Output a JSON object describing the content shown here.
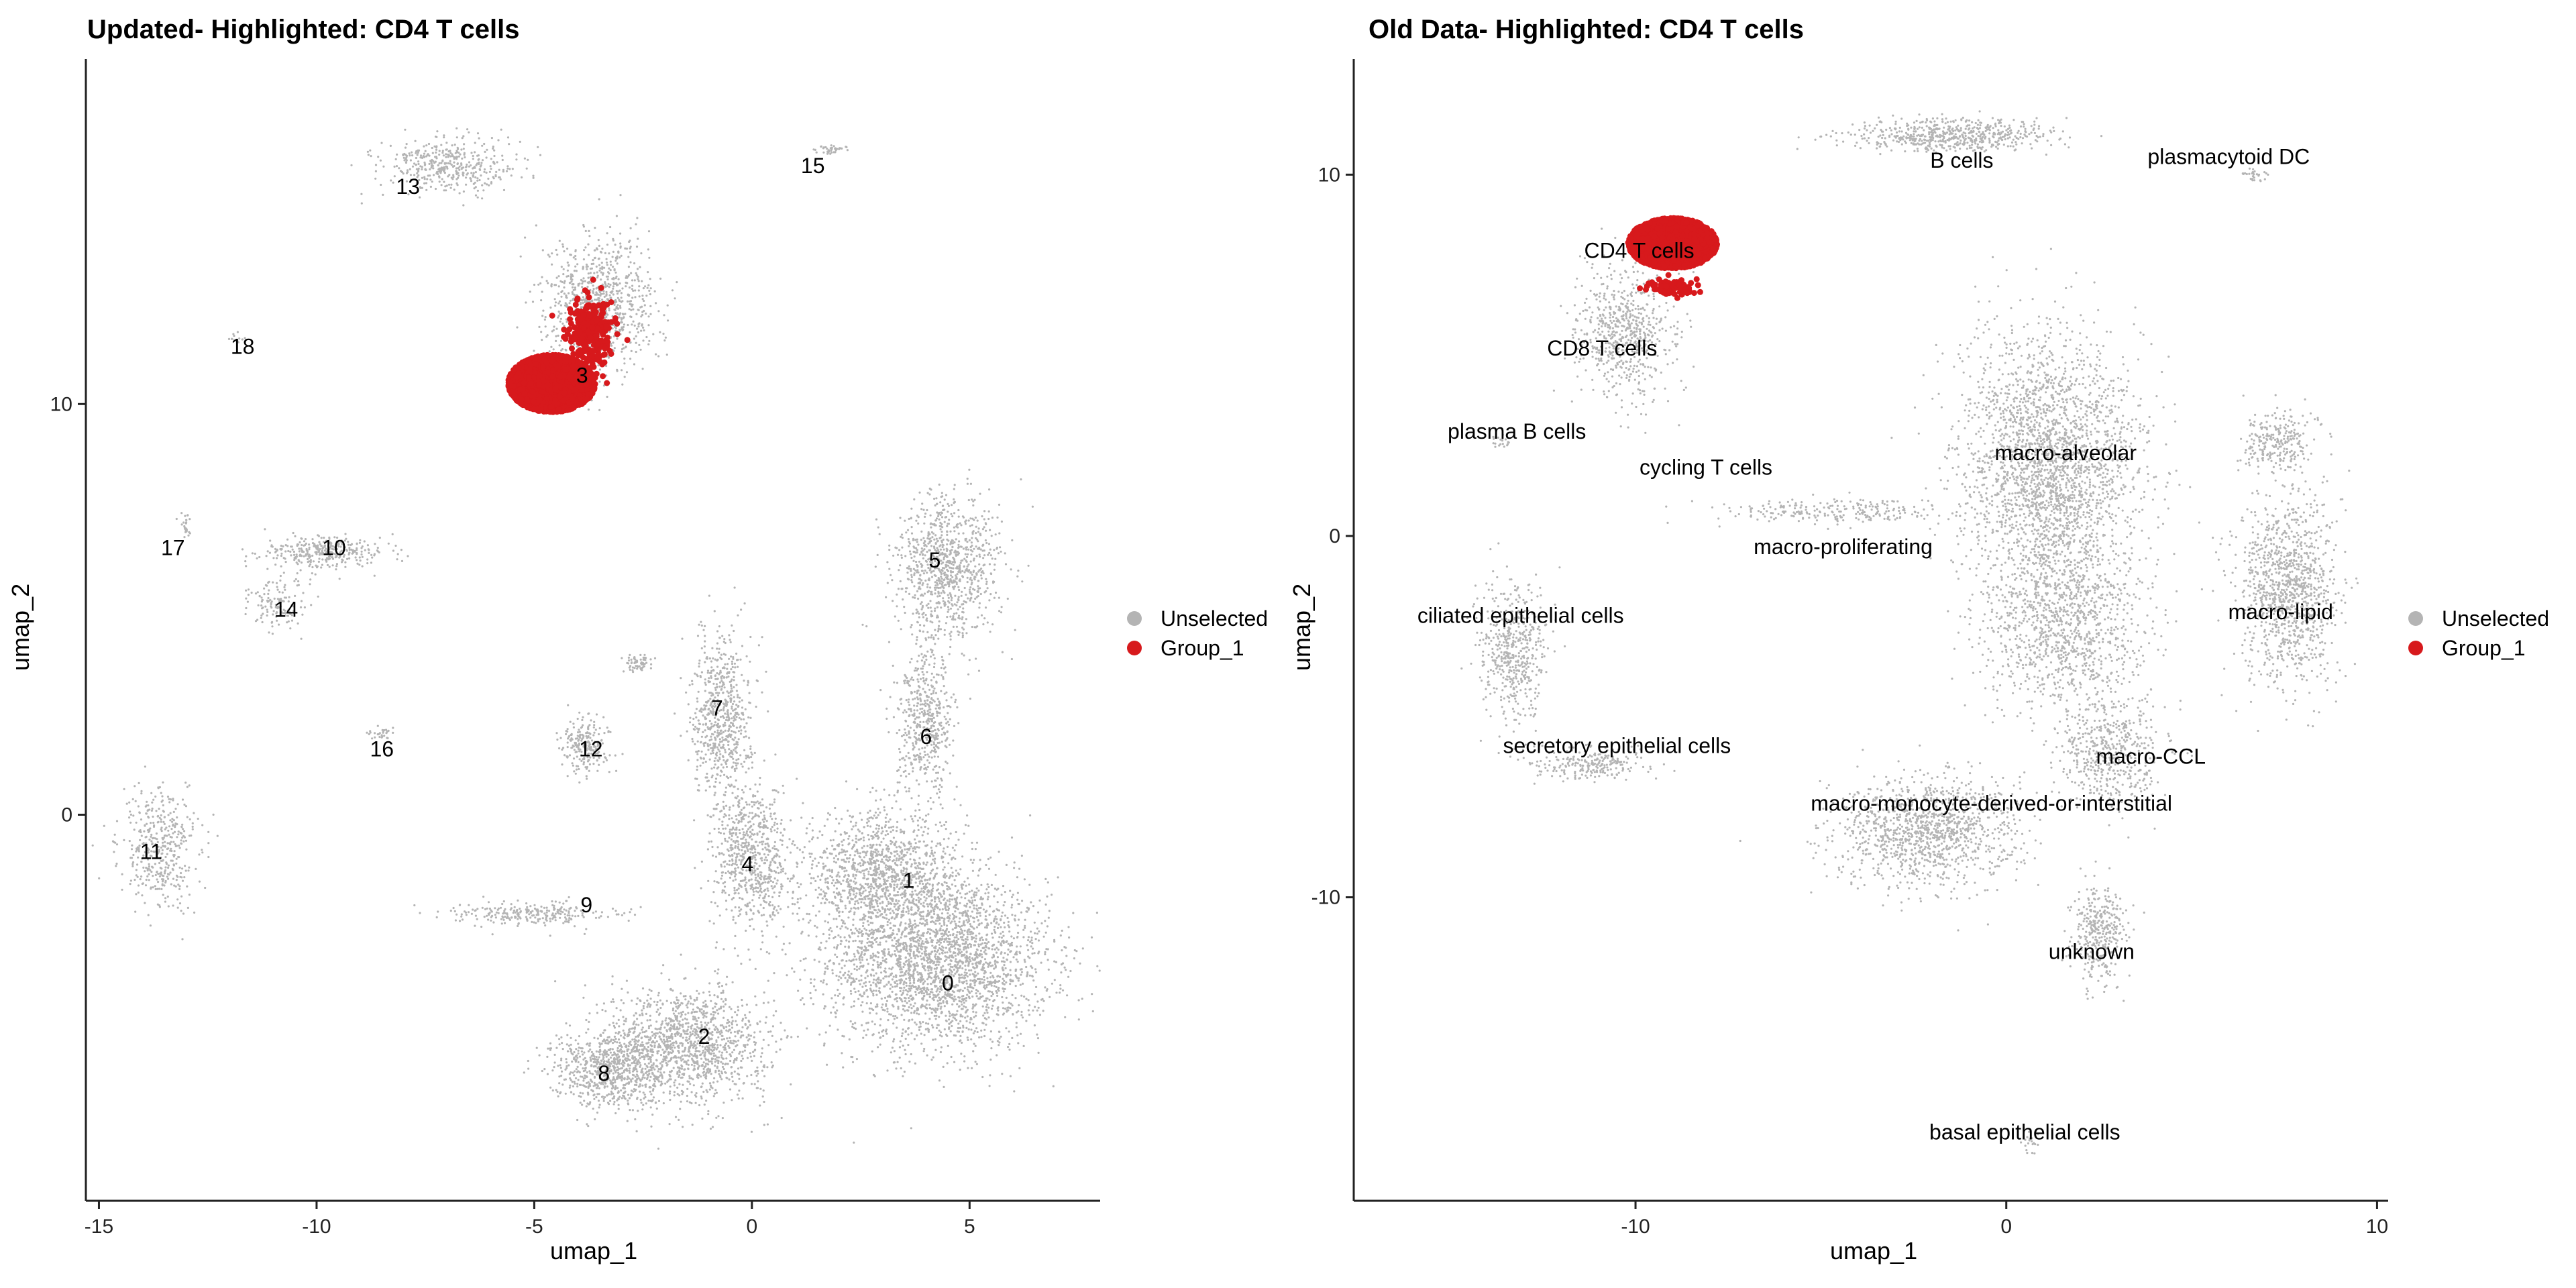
{
  "colors": {
    "unselected": "#b4b4b4",
    "group": "#d7191c",
    "axis": "#222222"
  },
  "chart_data": [
    {
      "type": "scatter",
      "title": "Updated- Highlighted: CD4 T cells",
      "xlabel": "umap_1",
      "ylabel": "umap_2",
      "xlim": [
        -15.3,
        8.0
      ],
      "ylim": [
        -9.4,
        18.4
      ],
      "xticks": [
        -15,
        -10,
        -5,
        0,
        5
      ],
      "yticks": [
        0,
        10
      ],
      "legend": {
        "placement": "right",
        "entries": [
          "Unselected",
          "Group_1"
        ]
      },
      "clusters": [
        {
          "label": "0",
          "x": 4.5,
          "y": -4.1
        },
        {
          "label": "1",
          "x": 3.6,
          "y": -1.6
        },
        {
          "label": "2",
          "x": -1.1,
          "y": -5.4
        },
        {
          "label": "3",
          "x": -3.9,
          "y": 10.7
        },
        {
          "label": "4",
          "x": -0.1,
          "y": -1.2
        },
        {
          "label": "5",
          "x": 4.2,
          "y": 6.2
        },
        {
          "label": "6",
          "x": 4.0,
          "y": 1.9
        },
        {
          "label": "7",
          "x": -0.8,
          "y": 2.6
        },
        {
          "label": "8",
          "x": -3.4,
          "y": -6.3
        },
        {
          "label": "9",
          "x": -3.8,
          "y": -2.2
        },
        {
          "label": "10",
          "x": -9.6,
          "y": 6.5
        },
        {
          "label": "11",
          "x": -13.8,
          "y": -0.9
        },
        {
          "label": "12",
          "x": -3.7,
          "y": 1.6
        },
        {
          "label": "13",
          "x": -7.9,
          "y": 15.3
        },
        {
          "label": "14",
          "x": -10.7,
          "y": 5.0
        },
        {
          "label": "15",
          "x": 1.4,
          "y": 15.8
        },
        {
          "label": "16",
          "x": -8.5,
          "y": 1.6
        },
        {
          "label": "17",
          "x": -13.3,
          "y": 6.5
        },
        {
          "label": "18",
          "x": -11.7,
          "y": 11.4
        }
      ]
    },
    {
      "type": "scatter",
      "title": "Old Data- Highlighted: CD4 T cells",
      "xlabel": "umap_1",
      "ylabel": "umap_2",
      "xlim": [
        -17.6,
        10.3
      ],
      "ylim": [
        -18.4,
        13.2
      ],
      "xticks": [
        -10,
        0,
        10
      ],
      "yticks": [
        -10,
        0,
        10
      ],
      "legend": {
        "placement": "right",
        "entries": [
          "Unselected",
          "Group_1"
        ]
      },
      "clusters": [
        {
          "label": "B cells",
          "x": -1.2,
          "y": 10.4
        },
        {
          "label": "plasmacytoid DC",
          "x": 6.0,
          "y": 10.5
        },
        {
          "label": "CD4 T cells",
          "x": -9.9,
          "y": 7.9
        },
        {
          "label": "CD8 T cells",
          "x": -10.9,
          "y": 5.2
        },
        {
          "label": "plasma B cells",
          "x": -13.2,
          "y": 2.9
        },
        {
          "label": "cycling T cells",
          "x": -8.1,
          "y": 1.9
        },
        {
          "label": "macro-alveolar",
          "x": 1.6,
          "y": 2.3
        },
        {
          "label": "macro-proliferating",
          "x": -4.4,
          "y": -0.3
        },
        {
          "label": "ciliated epithelial cells",
          "x": -13.1,
          "y": -2.2
        },
        {
          "label": "macro-lipid",
          "x": 7.4,
          "y": -2.1
        },
        {
          "label": "secretory epithelial cells",
          "x": -10.5,
          "y": -5.8
        },
        {
          "label": "macro-CCL",
          "x": 3.9,
          "y": -6.1
        },
        {
          "label": "macro-monocyte-derived-or-interstitial",
          "x": -0.4,
          "y": -7.4
        },
        {
          "label": "unknown",
          "x": 2.3,
          "y": -11.5
        },
        {
          "label": "basal epithelial cells",
          "x": 0.5,
          "y": -16.5
        }
      ]
    }
  ]
}
